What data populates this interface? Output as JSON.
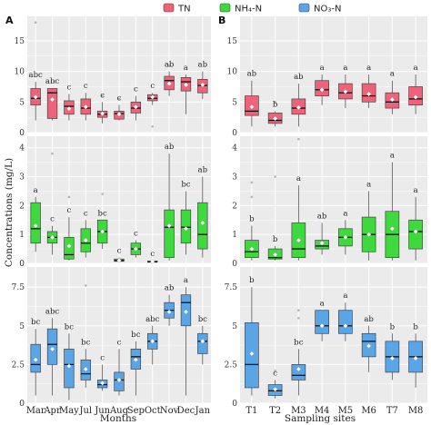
{
  "legend": [
    {
      "label": "TN",
      "color": "#f0627a"
    },
    {
      "label": "NH₄-N",
      "color": "#3ed93c"
    },
    {
      "label": "NO₃-N",
      "color": "#5aa5e6"
    }
  ],
  "panel_labels": [
    "A",
    "B"
  ],
  "ylabel": "Concentrations (mg/L)",
  "xlabels": [
    "Months",
    "Sampling sites"
  ],
  "chart_data": [
    {
      "type": "box",
      "id": "A-TN",
      "column": "A",
      "series": "TN",
      "color": "#f0627a",
      "ylim": [
        0,
        19
      ],
      "yticks": [
        0,
        5,
        10,
        15
      ],
      "categories": [
        "Mar",
        "Apr",
        "May",
        "Jul",
        "Jun",
        "Aug",
        "Sep",
        "Oct",
        "Nov",
        "Dec",
        "Jan"
      ],
      "boxes": [
        {
          "min": 2,
          "q1": 4.5,
          "median": 5.6,
          "q3": 7.2,
          "max": 8.3,
          "mean": 5.8,
          "letter": "abc",
          "outliers": [
            18
          ]
        },
        {
          "min": 2,
          "q1": 2.3,
          "median": 6.5,
          "q3": 7.2,
          "max": 7.3,
          "mean": 5.4,
          "letter": "abc",
          "outliers": []
        },
        {
          "min": 2,
          "q1": 3,
          "median": 4.3,
          "q3": 5.2,
          "max": 6.3,
          "mean": 3.9,
          "letter": "c",
          "outliers": []
        },
        {
          "min": 2,
          "q1": 3,
          "median": 4,
          "q3": 5.5,
          "max": 6.5,
          "mean": 4.2,
          "letter": "c",
          "outliers": []
        },
        {
          "min": 1.5,
          "q1": 2.5,
          "median": 3,
          "q3": 3.5,
          "max": 5,
          "mean": 3.1,
          "letter": "c",
          "outliers": [
            6
          ]
        },
        {
          "min": 2,
          "q1": 2.2,
          "median": 3.1,
          "q3": 3.5,
          "max": 4.5,
          "mean": 3,
          "letter": "c",
          "outliers": [
            5.5
          ]
        },
        {
          "min": 2,
          "q1": 3.2,
          "median": 4,
          "q3": 5,
          "max": 6,
          "mean": 4.2,
          "letter": "c",
          "outliers": []
        },
        {
          "min": 4.5,
          "q1": 5.2,
          "median": 5.6,
          "q3": 6.2,
          "max": 6.5,
          "mean": 5.8,
          "letter": "c",
          "outliers": [
            1
          ]
        },
        {
          "min": 6,
          "q1": 7,
          "median": 8.5,
          "q3": 9.2,
          "max": 10,
          "mean": 8,
          "letter": "ab",
          "outliers": [
            11
          ]
        },
        {
          "min": 3,
          "q1": 6.8,
          "median": 8.3,
          "q3": 9,
          "max": 9.5,
          "mean": 7.8,
          "letter": "a",
          "outliers": []
        },
        {
          "min": 5.5,
          "q1": 6.5,
          "median": 7.7,
          "q3": 8.7,
          "max": 10,
          "mean": 7.8,
          "letter": "ab",
          "outliers": []
        }
      ]
    },
    {
      "type": "box",
      "id": "B-TN",
      "column": "B",
      "series": "TN",
      "color": "#f0627a",
      "ylim": [
        0,
        19
      ],
      "yticks": [
        0,
        5,
        10,
        15
      ],
      "categories": [
        "T1",
        "T2",
        "M3",
        "M4",
        "M5",
        "M6",
        "T7",
        "M8"
      ],
      "boxes": [
        {
          "min": 1,
          "q1": 2.8,
          "median": 3.5,
          "q3": 6,
          "max": 8.5,
          "mean": 4.2,
          "letter": "ab",
          "outliers": []
        },
        {
          "min": 1,
          "q1": 1.5,
          "median": 2,
          "q3": 3.2,
          "max": 3.5,
          "mean": 2.3,
          "letter": "b",
          "outliers": [
            5
          ]
        },
        {
          "min": 1,
          "q1": 3,
          "median": 4,
          "q3": 5.5,
          "max": 8,
          "mean": 4.1,
          "letter": "ab",
          "outliers": []
        },
        {
          "min": 4.5,
          "q1": 6,
          "median": 7,
          "q3": 8.5,
          "max": 9.5,
          "mean": 7,
          "letter": "a",
          "outliers": []
        },
        {
          "min": 4,
          "q1": 5.5,
          "median": 6.5,
          "q3": 8,
          "max": 9.5,
          "mean": 6.7,
          "letter": "a",
          "outliers": []
        },
        {
          "min": 4,
          "q1": 5,
          "median": 6,
          "q3": 8,
          "max": 9.5,
          "mean": 6.3,
          "letter": "a",
          "outliers": []
        },
        {
          "min": 3,
          "q1": 4,
          "median": 5,
          "q3": 6.5,
          "max": 8.5,
          "mean": 5.4,
          "letter": "a",
          "outliers": []
        },
        {
          "min": 3,
          "q1": 4.5,
          "median": 5.5,
          "q3": 7.5,
          "max": 9.5,
          "mean": 5.8,
          "letter": "a",
          "outliers": []
        }
      ]
    },
    {
      "type": "box",
      "id": "A-NH4",
      "column": "A",
      "series": "NH₄-N",
      "color": "#3ed93c",
      "ylim": [
        0,
        4.4
      ],
      "yticks": [
        0,
        1,
        2,
        3,
        4
      ],
      "categories": [
        "Mar",
        "Apr",
        "May",
        "Jul",
        "Jun",
        "Aug",
        "Sep",
        "Oct",
        "Nov",
        "Dec",
        "Jan"
      ],
      "boxes": [
        {
          "min": 0.4,
          "q1": 0.7,
          "median": 1.2,
          "q3": 2.1,
          "max": 2.3,
          "mean": 1.3,
          "letter": "a",
          "outliers": []
        },
        {
          "min": 0.3,
          "q1": 0.7,
          "median": 0.9,
          "q3": 1.1,
          "max": 1.3,
          "mean": 0.9,
          "letter": "c",
          "outliers": [
            3.8
          ]
        },
        {
          "min": 0.1,
          "q1": 0.15,
          "median": 0.3,
          "q3": 0.9,
          "max": 1.6,
          "mean": 0.6,
          "letter": "c",
          "outliers": [
            2.3
          ]
        },
        {
          "min": 0.2,
          "q1": 0.4,
          "median": 0.7,
          "q3": 1.2,
          "max": 1.5,
          "mean": 0.8,
          "letter": "c",
          "outliers": []
        },
        {
          "min": 0.5,
          "q1": 0.7,
          "median": 1.1,
          "q3": 1.5,
          "max": 1.5,
          "mean": 1.1,
          "letter": "bc",
          "outliers": [
            2.4
          ]
        },
        {
          "min": 0.05,
          "q1": 0.07,
          "median": 0.1,
          "q3": 0.15,
          "max": 0.2,
          "mean": 0.1,
          "letter": "c",
          "outliers": []
        },
        {
          "min": 0.2,
          "q1": 0.3,
          "median": 0.5,
          "q3": 0.7,
          "max": 0.8,
          "mean": 0.5,
          "letter": "c",
          "outliers": []
        },
        {
          "min": 0.03,
          "q1": 0.04,
          "median": 0.05,
          "q3": 0.08,
          "max": 0.1,
          "mean": 0.06,
          "letter": "c",
          "outliers": []
        },
        {
          "min": 0.1,
          "q1": 0.2,
          "median": 1.25,
          "q3": 1.85,
          "max": 3.8,
          "mean": 1.3,
          "letter": "ab",
          "outliers": []
        },
        {
          "min": 0.3,
          "q1": 0.7,
          "median": 1.25,
          "q3": 1.85,
          "max": 2.5,
          "mean": 1.2,
          "letter": "bc",
          "outliers": []
        },
        {
          "min": 0.2,
          "q1": 0.5,
          "median": 1,
          "q3": 2.1,
          "max": 3,
          "mean": 1.4,
          "letter": "ab",
          "outliers": []
        }
      ]
    },
    {
      "type": "box",
      "id": "B-NH4",
      "column": "B",
      "series": "NH₄-N",
      "color": "#3ed93c",
      "ylim": [
        0,
        4.4
      ],
      "yticks": [
        0,
        1,
        2,
        3,
        4
      ],
      "categories": [
        "T1",
        "T2",
        "M3",
        "M4",
        "M5",
        "M6",
        "T7",
        "M8"
      ],
      "boxes": [
        {
          "min": 0.1,
          "q1": 0.2,
          "median": 0.4,
          "q3": 0.8,
          "max": 1.3,
          "mean": 0.5,
          "letter": "b",
          "outliers": [
            2.3,
            2.8
          ]
        },
        {
          "min": 0.1,
          "q1": 0.15,
          "median": 0.2,
          "q3": 0.5,
          "max": 0.6,
          "mean": 0.3,
          "letter": "b",
          "outliers": [
            3
          ]
        },
        {
          "min": 0.1,
          "q1": 0.2,
          "median": 0.5,
          "q3": 1.4,
          "max": 2.7,
          "mean": 0.8,
          "letter": "a",
          "outliers": [
            4.3
          ]
        },
        {
          "min": 0.3,
          "q1": 0.5,
          "median": 0.6,
          "q3": 0.8,
          "max": 1.4,
          "mean": 0.7,
          "letter": "ab",
          "outliers": []
        },
        {
          "min": 0.3,
          "q1": 0.6,
          "median": 0.9,
          "q3": 1.2,
          "max": 1.5,
          "mean": 0.9,
          "letter": "a",
          "outliers": []
        },
        {
          "min": 0.1,
          "q1": 0.4,
          "median": 1,
          "q3": 1.6,
          "max": 2.5,
          "mean": 1,
          "letter": "a",
          "outliers": []
        },
        {
          "min": 0.1,
          "q1": 0.2,
          "median": 1,
          "q3": 1.8,
          "max": 3.5,
          "mean": 1.2,
          "letter": "a",
          "outliers": []
        },
        {
          "min": 0.1,
          "q1": 0.5,
          "median": 1.1,
          "q3": 1.5,
          "max": 2.3,
          "mean": 1.1,
          "letter": "a",
          "outliers": []
        }
      ]
    },
    {
      "type": "box",
      "id": "A-NO3",
      "column": "A",
      "series": "NO₃-N",
      "color": "#5aa5e6",
      "ylim": [
        0,
        8.8
      ],
      "yticks": [
        0,
        2.5,
        5,
        7.5
      ],
      "categories": [
        "Mar",
        "Apr",
        "May",
        "Jul",
        "Jun",
        "Aug",
        "Sep",
        "Oct",
        "Nov",
        "Dec",
        "Jan"
      ],
      "boxes": [
        {
          "min": 0.5,
          "q1": 2,
          "median": 2.5,
          "q3": 3.8,
          "max": 4.8,
          "mean": 2.8,
          "letter": "bc",
          "outliers": []
        },
        {
          "min": 0.5,
          "q1": 2.5,
          "median": 3.8,
          "q3": 4.8,
          "max": 5.5,
          "mean": 3.5,
          "letter": "abc",
          "outliers": []
        },
        {
          "min": 0.2,
          "q1": 1,
          "median": 2.5,
          "q3": 3.5,
          "max": 4.5,
          "mean": 2.4,
          "letter": "bc",
          "outliers": []
        },
        {
          "min": 1,
          "q1": 1.5,
          "median": 1.9,
          "q3": 2.8,
          "max": 3.5,
          "mean": 2.2,
          "letter": "bc",
          "outliers": [
            7.6
          ]
        },
        {
          "min": 0.8,
          "q1": 1,
          "median": 1.2,
          "q3": 1.5,
          "max": 2.5,
          "mean": 1.3,
          "letter": "c",
          "outliers": []
        },
        {
          "min": 0.5,
          "q1": 0.8,
          "median": 1.5,
          "q3": 2,
          "max": 3.5,
          "mean": 1.5,
          "letter": "c",
          "outliers": []
        },
        {
          "min": 0.5,
          "q1": 2.2,
          "median": 3,
          "q3": 3.5,
          "max": 4,
          "mean": 2.8,
          "letter": "bc",
          "outliers": []
        },
        {
          "min": 2.5,
          "q1": 3.5,
          "median": 4,
          "q3": 4.5,
          "max": 5,
          "mean": 4,
          "letter": "abc",
          "outliers": []
        },
        {
          "min": 5,
          "q1": 5.5,
          "median": 6,
          "q3": 6.5,
          "max": 7,
          "mean": 5.9,
          "letter": "ab",
          "outliers": []
        },
        {
          "min": 0.5,
          "q1": 5,
          "median": 6.5,
          "q3": 7,
          "max": 7.5,
          "mean": 5.9,
          "letter": "a",
          "outliers": []
        },
        {
          "min": 2.5,
          "q1": 3.2,
          "median": 4,
          "q3": 4.5,
          "max": 5,
          "mean": 4,
          "letter": "bc",
          "outliers": []
        }
      ]
    },
    {
      "type": "box",
      "id": "B-NO3",
      "column": "B",
      "series": "NO₃-N",
      "color": "#5aa5e6",
      "ylim": [
        0,
        8.8
      ],
      "yticks": [
        0,
        2.5,
        5,
        7.5
      ],
      "categories": [
        "T1",
        "T2",
        "M3",
        "M4",
        "M5",
        "M6",
        "T7",
        "M8"
      ],
      "boxes": [
        {
          "min": 0.5,
          "q1": 1,
          "median": 2.5,
          "q3": 5.2,
          "max": 7.5,
          "mean": 3.2,
          "letter": "b",
          "outliers": []
        },
        {
          "min": 0.3,
          "q1": 0.5,
          "median": 0.8,
          "q3": 1.2,
          "max": 1.5,
          "mean": 0.9,
          "letter": "c",
          "outliers": [
            2.1
          ]
        },
        {
          "min": 0.5,
          "q1": 1.5,
          "median": 1.8,
          "q3": 2.5,
          "max": 3.5,
          "mean": 2.2,
          "letter": "bc",
          "outliers": [
            5.5,
            6
          ]
        },
        {
          "min": 4,
          "q1": 4.5,
          "median": 5,
          "q3": 6,
          "max": 6,
          "mean": 5,
          "letter": "a",
          "outliers": []
        },
        {
          "min": 4,
          "q1": 4.5,
          "median": 5,
          "q3": 6,
          "max": 6.5,
          "mean": 5,
          "letter": "a",
          "outliers": []
        },
        {
          "min": 2,
          "q1": 3,
          "median": 4,
          "q3": 4.5,
          "max": 5,
          "mean": 3.7,
          "letter": "ab",
          "outliers": []
        },
        {
          "min": 1.5,
          "q1": 2,
          "median": 3,
          "q3": 4,
          "max": 4.5,
          "mean": 2.9,
          "letter": "b",
          "outliers": []
        },
        {
          "min": 1,
          "q1": 2,
          "median": 3,
          "q3": 4,
          "max": 4.5,
          "mean": 2.9,
          "letter": "b",
          "outliers": []
        }
      ]
    }
  ]
}
